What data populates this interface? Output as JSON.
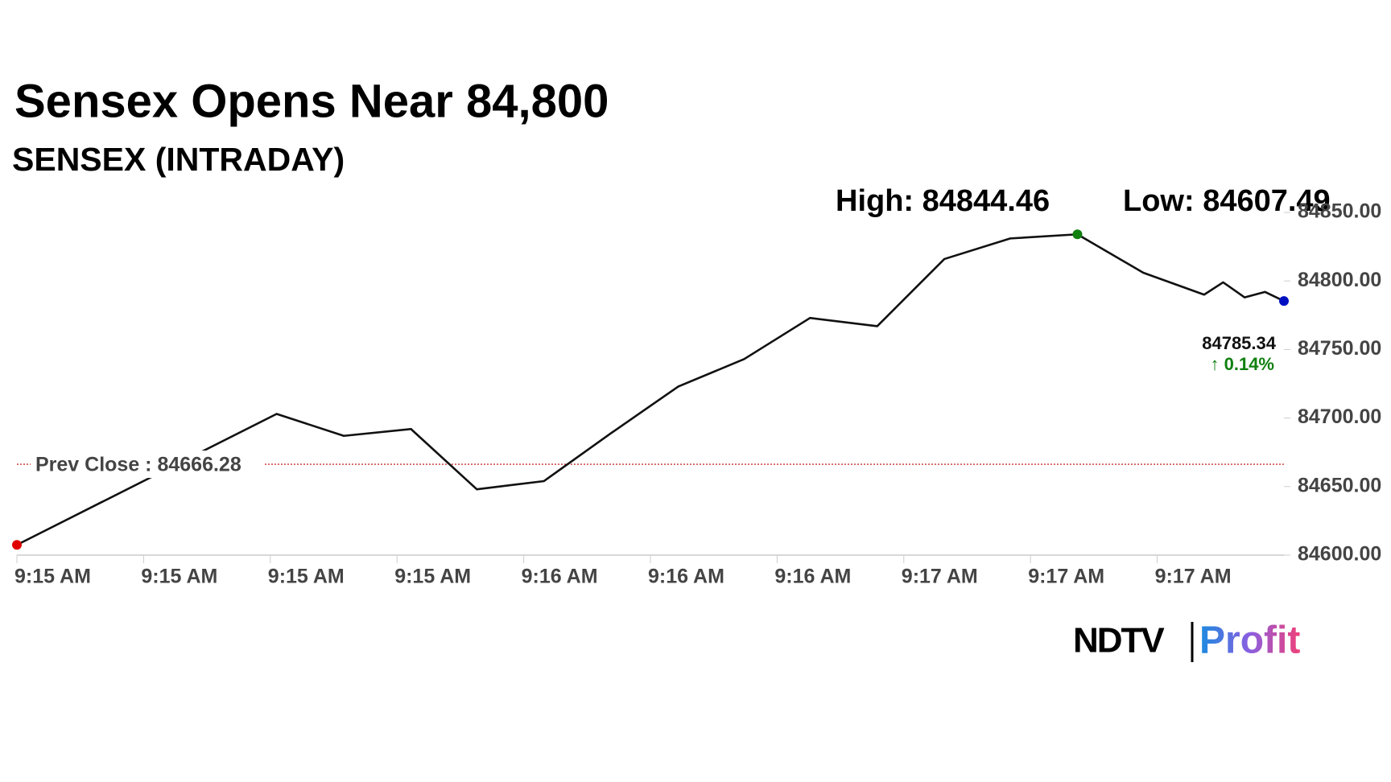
{
  "chart_data": {
    "type": "line",
    "title": "Sensex Opens Near 84,800",
    "subtitle": "SENSEX (INTRADAY)",
    "high_label": "High: 84844.46",
    "low_label": "Low: 84607.49",
    "prev_close": 84666.28,
    "prev_close_label": "Prev Close : 84666.28",
    "prev_close_color": "#c00000",
    "change_label": "↑ 0.14%",
    "change_color": "#108010",
    "series": [
      {
        "name": "SENSEX",
        "color": "#111111",
        "x": [
          0,
          2.05,
          2.58,
          3.11,
          3.63,
          4.16,
          4.69,
          5.22,
          5.74,
          6.26,
          6.79,
          7.32,
          7.84,
          8.37,
          8.89,
          9.37,
          9.52,
          9.69,
          9.85,
          10
        ],
        "values": [
          84607.49,
          84703,
          84687,
          84692,
          84648,
          84654,
          84689,
          84723,
          84743,
          84773,
          84767,
          84816,
          84831,
          84834,
          84806,
          84790,
          84799,
          84788,
          84792,
          84785.34
        ],
        "value_labels": [
          null,
          null,
          null,
          null,
          null,
          null,
          null,
          null,
          null,
          null,
          null,
          null,
          null,
          null,
          null,
          null,
          null,
          null,
          null,
          "84785.34"
        ]
      }
    ],
    "markers": {
      "start": "#e00000",
      "high": "#108010",
      "end": "#0010c0"
    },
    "xlim": [
      0,
      10
    ],
    "xticks": [
      {
        "value": 0,
        "label": "9:15 AM"
      },
      {
        "value": 1,
        "label": "9:15 AM"
      },
      {
        "value": 2,
        "label": "9:15 AM"
      },
      {
        "value": 3,
        "label": "9:15 AM"
      },
      {
        "value": 4,
        "label": "9:16 AM"
      },
      {
        "value": 5,
        "label": "9:16 AM"
      },
      {
        "value": 6,
        "label": "9:16 AM"
      },
      {
        "value": 7,
        "label": "9:17 AM"
      },
      {
        "value": 8,
        "label": "9:17 AM"
      },
      {
        "value": 9,
        "label": "9:17 AM"
      }
    ],
    "ylim": [
      84600,
      84850
    ],
    "yticks": [
      {
        "value": 84600,
        "label": "84600.00"
      },
      {
        "value": 84650,
        "label": "84650.00"
      },
      {
        "value": 84700,
        "label": "84700.00"
      },
      {
        "value": 84750,
        "label": "84750.00"
      },
      {
        "value": 84800,
        "label": "84800.00"
      },
      {
        "value": 84850,
        "label": "84850.00"
      }
    ],
    "logo": {
      "left": "NDTV",
      "right": "Profit"
    }
  }
}
